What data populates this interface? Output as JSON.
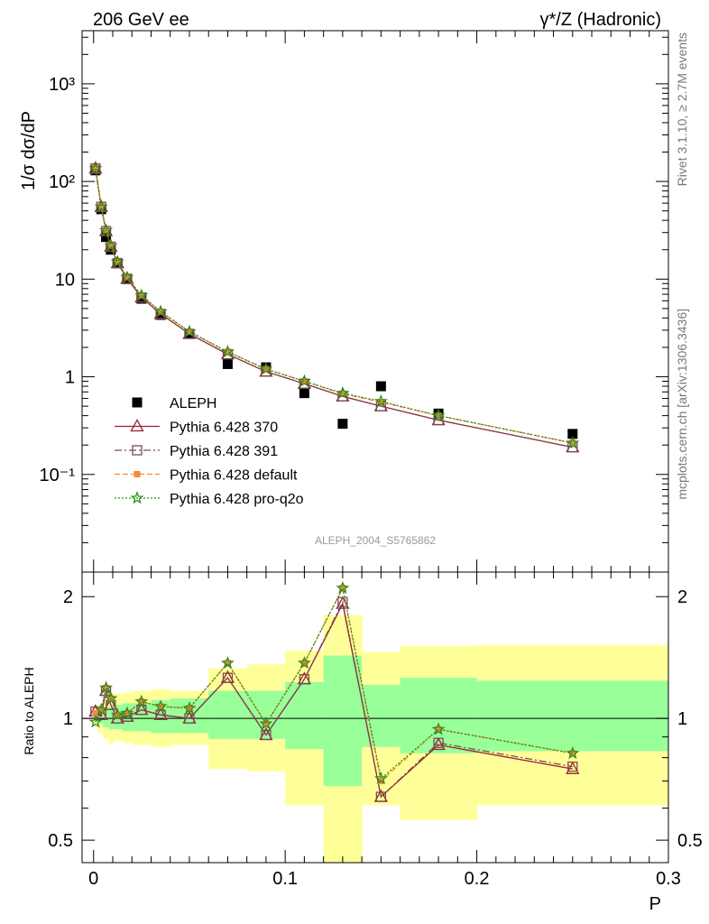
{
  "header": {
    "left_title": "206 GeV ee",
    "right_title": "γ*/Z (Hadronic)",
    "side_label_1": "Rivet 3.1.10, ≥ 2.7M events",
    "side_label_2": "mcplots.cern.ch [arXiv:1306.3436]",
    "analysis_id": "ALEPH_2004_S5765862"
  },
  "chart_data": [
    {
      "type": "scatter",
      "panel": "main",
      "ylabel": "1/σ  dσ/dP",
      "xlabel": "",
      "yscale": "log",
      "ylim": [
        0.01,
        3500
      ],
      "xlim": [
        -0.006,
        0.3
      ],
      "ytick_labels": [
        "10⁻¹",
        "1",
        "10",
        "10²",
        "10³"
      ],
      "ytick_values": [
        0.1,
        1,
        10,
        100,
        1000
      ],
      "legend": {
        "position": "lower-left",
        "entries": [
          "ALEPH",
          "Pythia 6.428 370",
          "Pythia 6.428 391",
          "Pythia 6.428 default",
          "Pythia 6.428 pro-q2o"
        ]
      },
      "x": [
        0.001,
        0.004,
        0.0065,
        0.009,
        0.0125,
        0.0175,
        0.025,
        0.035,
        0.05,
        0.07,
        0.09,
        0.11,
        0.13,
        0.15,
        0.18,
        0.25
      ],
      "series": [
        {
          "name": "ALEPH",
          "color": "#000000",
          "marker": "square",
          "values": [
            130,
            52,
            27,
            20,
            14.5,
            10,
            6.3,
            4.3,
            2.75,
            1.35,
            1.25,
            0.68,
            0.33,
            0.8,
            0.42,
            0.26
          ]
        },
        {
          "name": "Pythia 6.428 370",
          "color": "#9b1f2e",
          "marker": "triangle",
          "line": "solid",
          "values": [
            136,
            55,
            31,
            21.5,
            14.6,
            10.1,
            6.5,
            4.4,
            2.75,
            1.7,
            1.13,
            0.85,
            0.63,
            0.5,
            0.36,
            0.19
          ]
        },
        {
          "name": "Pythia 6.428 391",
          "color": "#7a4a5a",
          "marker": "open-square",
          "line": "dashdot",
          "values": [
            136,
            55,
            31,
            21.5,
            14.6,
            10.1,
            6.5,
            4.4,
            2.75,
            1.7,
            1.13,
            0.85,
            0.63,
            0.5,
            0.36,
            0.19
          ]
        },
        {
          "name": "Pythia 6.428 default",
          "color": "#f28c38",
          "marker": "filled-square",
          "line": "dashed",
          "values": [
            137,
            55.5,
            31.5,
            22,
            15,
            10.4,
            6.8,
            4.65,
            2.9,
            1.8,
            1.2,
            0.9,
            0.67,
            0.55,
            0.4,
            0.21
          ]
        },
        {
          "name": "Pythia 6.428 pro-q2o",
          "color": "#2e8b1e",
          "marker": "star",
          "line": "dotted",
          "values": [
            135,
            55,
            31.5,
            22,
            15,
            10.4,
            6.8,
            4.65,
            2.9,
            1.8,
            1.2,
            0.9,
            0.68,
            0.56,
            0.4,
            0.21
          ]
        }
      ]
    },
    {
      "type": "line",
      "panel": "ratio",
      "ylabel": "Ratio to ALEPH",
      "xlabel": "P",
      "yscale": "log",
      "ylim": [
        0.44,
        2.3
      ],
      "xlim": [
        -0.006,
        0.3
      ],
      "ytick_labels": [
        "0.5",
        "1",
        "2"
      ],
      "ytick_values": [
        0.5,
        1,
        2
      ],
      "xtick_labels": [
        "0",
        "0.1",
        "0.2",
        "0.3"
      ],
      "xtick_values": [
        0,
        0.1,
        0.2,
        0.3
      ],
      "bands": {
        "bin_edges": [
          0,
          0.002,
          0.005,
          0.008,
          0.01,
          0.015,
          0.02,
          0.03,
          0.04,
          0.06,
          0.08,
          0.1,
          0.12,
          0.14,
          0.16,
          0.2,
          0.3
        ],
        "stat_color": "#99ff99",
        "total_color": "#ffff99",
        "stat_low": [
          0.98,
          0.97,
          0.95,
          0.94,
          0.94,
          0.93,
          0.93,
          0.92,
          0.92,
          0.89,
          0.89,
          0.84,
          0.68,
          0.85,
          0.82,
          0.83
        ],
        "stat_high": [
          1.02,
          1.03,
          1.06,
          1.07,
          1.08,
          1.09,
          1.09,
          1.11,
          1.12,
          1.17,
          1.17,
          1.23,
          1.43,
          1.21,
          1.26,
          1.24
        ],
        "total_low": [
          0.96,
          0.92,
          0.89,
          0.86,
          0.88,
          0.87,
          0.86,
          0.85,
          0.86,
          0.75,
          0.74,
          0.61,
          0.34,
          0.61,
          0.56,
          0.61
        ],
        "total_high": [
          1.04,
          1.08,
          1.11,
          1.16,
          1.15,
          1.16,
          1.17,
          1.18,
          1.17,
          1.33,
          1.36,
          1.47,
          1.8,
          1.46,
          1.51,
          1.52
        ]
      },
      "x": [
        0.001,
        0.004,
        0.0065,
        0.009,
        0.0125,
        0.0175,
        0.025,
        0.035,
        0.05,
        0.07,
        0.09,
        0.11,
        0.13,
        0.15,
        0.18,
        0.25
      ],
      "series": [
        {
          "name": "Pythia 6.428 370",
          "color": "#9b1f2e",
          "marker": "triangle",
          "line": "solid",
          "values": [
            1.04,
            1.02,
            1.17,
            1.08,
            1.0,
            1.01,
            1.05,
            1.02,
            1.0,
            1.26,
            0.91,
            1.25,
            1.92,
            0.64,
            0.86,
            0.75
          ]
        },
        {
          "name": "Pythia 6.428 391",
          "color": "#7a4a5a",
          "marker": "open-square",
          "line": "dashdot",
          "values": [
            1.04,
            1.02,
            1.17,
            1.08,
            1.0,
            1.01,
            1.05,
            1.02,
            1.0,
            1.26,
            0.91,
            1.25,
            1.94,
            0.64,
            0.87,
            0.76
          ]
        },
        {
          "name": "Pythia 6.428 default",
          "color": "#f28c38",
          "marker": "filled-square",
          "line": "dashed",
          "values": [
            1.03,
            1.05,
            1.19,
            1.12,
            1.02,
            1.03,
            1.1,
            1.07,
            1.06,
            1.37,
            0.97,
            1.37,
            2.1,
            0.7,
            0.94,
            0.82
          ]
        },
        {
          "name": "Pythia 6.428 pro-q2o",
          "color": "#2e8b1e",
          "marker": "star",
          "line": "dotted",
          "values": [
            0.98,
            1.05,
            1.19,
            1.12,
            1.02,
            1.03,
            1.1,
            1.07,
            1.06,
            1.37,
            0.97,
            1.37,
            2.1,
            0.71,
            0.94,
            0.82
          ]
        }
      ]
    }
  ]
}
